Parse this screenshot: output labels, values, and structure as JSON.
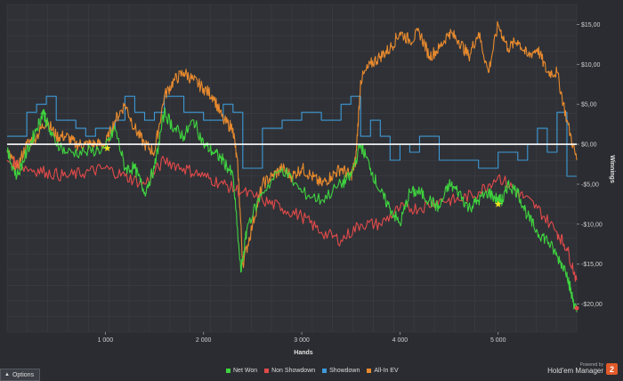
{
  "chart_data": {
    "type": "line",
    "xlabel": "Hands",
    "ylabel": "Winnings",
    "xlim": [
      0,
      5800
    ],
    "ylim": [
      -23.5,
      17.5
    ],
    "x_ticks": [
      {
        "value": 1000,
        "label": "1 000"
      },
      {
        "value": 2000,
        "label": "2 000"
      },
      {
        "value": 3000,
        "label": "3 000"
      },
      {
        "value": 4000,
        "label": "4 000"
      },
      {
        "value": 5000,
        "label": "5 000"
      }
    ],
    "y_ticks": [
      {
        "value": 15,
        "label": "$15,00"
      },
      {
        "value": 10,
        "label": "$10,00"
      },
      {
        "value": 5,
        "label": "$5,00"
      },
      {
        "value": 0,
        "label": "$0,00"
      },
      {
        "value": -5,
        "label": "-$5,00"
      },
      {
        "value": -10,
        "label": "-$10,00"
      },
      {
        "value": -15,
        "label": "-$15,00"
      },
      {
        "value": -20,
        "label": "-$20,00"
      }
    ],
    "grid": true,
    "legend_position": "bottom",
    "series": [
      {
        "name": "Net Won",
        "color": "#3fd33f",
        "x": [
          0,
          100,
          200,
          300,
          370,
          450,
          600,
          800,
          1000,
          1100,
          1200,
          1300,
          1400,
          1500,
          1600,
          1700,
          1800,
          1900,
          2000,
          2100,
          2200,
          2300,
          2380,
          2450,
          2600,
          2800,
          3000,
          3200,
          3400,
          3500,
          3600,
          3700,
          3800,
          3900,
          4000,
          4100,
          4200,
          4300,
          4400,
          4500,
          4600,
          4700,
          4800,
          4900,
          5000,
          5050,
          5100,
          5200,
          5300,
          5400,
          5500,
          5600,
          5700,
          5750,
          5800
        ],
        "values": [
          -1,
          -4,
          -1,
          2,
          4,
          1,
          -1,
          -1,
          -0.5,
          2,
          -3,
          -3,
          -6,
          -3,
          4,
          2,
          1,
          3,
          0,
          -1,
          -2,
          -4,
          -16,
          -10,
          -6,
          -3,
          -6,
          -7,
          -5,
          -4,
          0,
          -3,
          -6,
          -8,
          -10,
          -6,
          -6,
          -7,
          -8,
          -5,
          -6,
          -8,
          -7,
          -6,
          -7,
          -7,
          -5,
          -6,
          -9,
          -11,
          -12,
          -14,
          -16,
          -19,
          -21
        ]
      },
      {
        "name": "Non Showdown",
        "color": "#e24a4a",
        "x": [
          0,
          200,
          400,
          600,
          800,
          1000,
          1200,
          1400,
          1600,
          1800,
          2000,
          2200,
          2400,
          2600,
          2800,
          3000,
          3200,
          3400,
          3600,
          3800,
          4000,
          4200,
          4400,
          4600,
          4800,
          5000,
          5200,
          5400,
          5600,
          5700,
          5800
        ],
        "values": [
          -2,
          -3,
          -3.5,
          -4,
          -3.5,
          -3,
          -4,
          -5,
          -2,
          -3,
          -4,
          -5,
          -6,
          -7,
          -8,
          -9,
          -11,
          -12,
          -10,
          -10,
          -8,
          -8,
          -7,
          -7,
          -6,
          -4,
          -6,
          -8,
          -11,
          -13,
          -17
        ]
      },
      {
        "name": "Showdown",
        "color": "#3e9ad8",
        "x": [
          0,
          200,
          300,
          400,
          500,
          600,
          700,
          800,
          900,
          1000,
          1100,
          1200,
          1300,
          1400,
          1500,
          1600,
          1800,
          2000,
          2200,
          2300,
          2400,
          2600,
          2800,
          3000,
          3200,
          3400,
          3500,
          3600,
          3700,
          3800,
          3900,
          4000,
          4100,
          4200,
          4400,
          4600,
          4800,
          5000,
          5200,
          5300,
          5400,
          5500,
          5600,
          5700,
          5800
        ],
        "values": [
          1,
          4,
          5,
          6,
          3,
          3,
          2,
          1,
          2,
          2,
          3,
          6,
          4,
          3,
          4,
          6,
          4,
          3,
          5,
          4,
          -3,
          2,
          3,
          4,
          3,
          5,
          6,
          1,
          3,
          1,
          -2,
          0,
          -1,
          1,
          -2,
          -2,
          -3,
          -1,
          -2,
          0,
          2,
          -1,
          4,
          -4,
          -4
        ]
      },
      {
        "name": "All-In EV",
        "color": "#e88a2e",
        "x": [
          0,
          100,
          200,
          300,
          400,
          500,
          600,
          700,
          800,
          900,
          1000,
          1100,
          1200,
          1300,
          1400,
          1500,
          1600,
          1700,
          1800,
          1900,
          2000,
          2100,
          2200,
          2300,
          2350,
          2400,
          2500,
          2600,
          2700,
          2800,
          2900,
          3000,
          3100,
          3200,
          3300,
          3400,
          3500,
          3550,
          3600,
          3700,
          3800,
          3900,
          4000,
          4100,
          4200,
          4300,
          4400,
          4500,
          4600,
          4700,
          4800,
          4900,
          5000,
          5100,
          5200,
          5300,
          5400,
          5500,
          5600,
          5700,
          5800
        ],
        "values": [
          -1,
          -3,
          0,
          1,
          3,
          1,
          1,
          0,
          0,
          0,
          0,
          3,
          5,
          2,
          0,
          -1,
          6,
          8,
          9,
          8,
          7,
          6,
          3,
          2,
          -3,
          -15,
          -10,
          -5,
          -4,
          -3,
          -4,
          -3,
          -4,
          -5,
          -4,
          -3,
          -4,
          -2,
          8,
          10,
          11,
          12,
          14,
          13,
          14,
          11,
          12,
          14,
          13,
          11,
          14,
          9,
          15,
          12,
          13,
          11,
          12,
          9,
          9,
          3,
          -2
        ]
      }
    ],
    "markers": [
      {
        "series": "Net Won",
        "x": 370,
        "y": 4,
        "shape": "triangle",
        "color": "#3fd33f"
      },
      {
        "series": "Net Won",
        "x": 1020,
        "y": -0.5,
        "shape": "star",
        "color": "#f0e020"
      },
      {
        "series": "Net Won",
        "x": 5000,
        "y": -7.5,
        "shape": "star",
        "color": "#f0e020"
      },
      {
        "series": "Net Won",
        "x": 5800,
        "y": -20.5,
        "shape": "dot",
        "color": "#e24a4a"
      }
    ]
  },
  "toolbar": {
    "options_label": "Options",
    "options_icon": "triangle-up-icon"
  },
  "brand": {
    "powered_by": "Powered by",
    "name": "Hold'em Manager",
    "logo_text": "2"
  }
}
